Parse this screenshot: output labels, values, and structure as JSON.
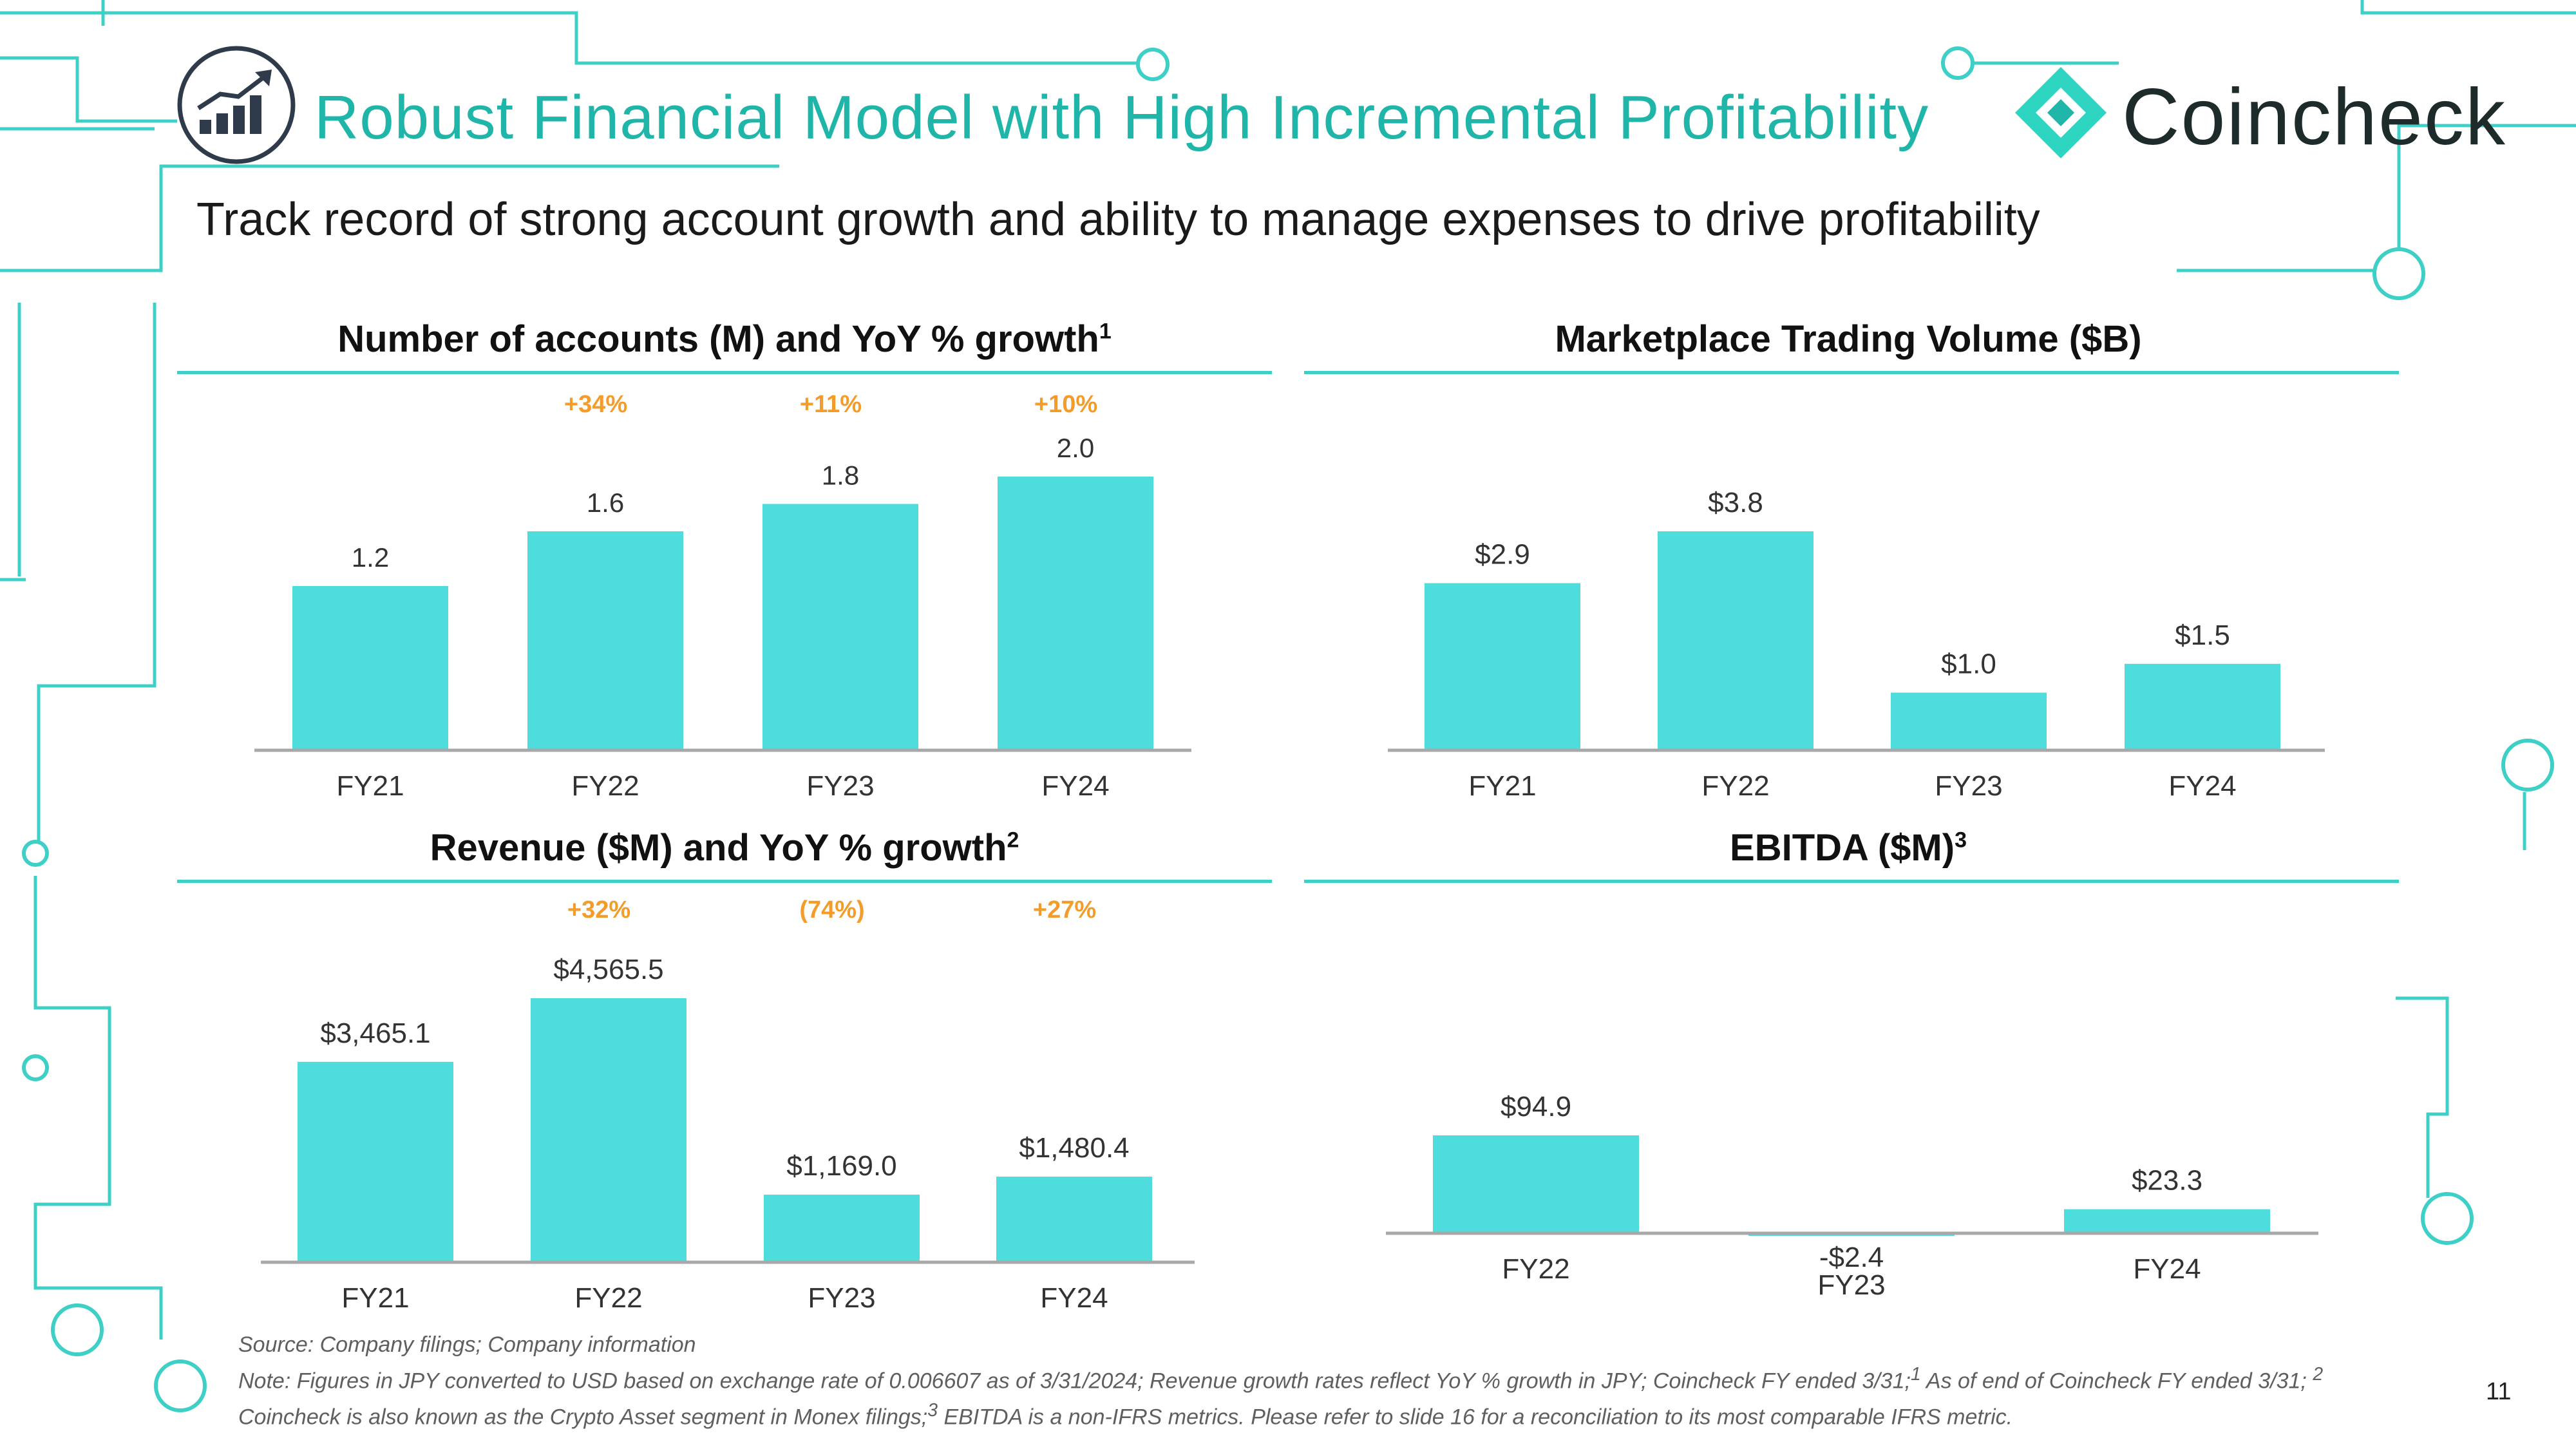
{
  "header": {
    "title": "Robust Financial Model with High Incremental Profitability",
    "subtitle": "Track record of strong account growth and ability to manage expenses to drive profitability",
    "logo_text": "Coincheck"
  },
  "colors": {
    "accent": "#1fb5a8",
    "bar": "#4fdcdc",
    "growth": "#f39c2a",
    "rule": "#3ecfc7"
  },
  "panels": {
    "accounts": {
      "title": "Number of accounts (M) and YoY % growth",
      "sup": "1"
    },
    "volume": {
      "title": "Marketplace Trading Volume ($B)",
      "sup": ""
    },
    "revenue": {
      "title": "Revenue ($M) and YoY % growth",
      "sup": "2"
    },
    "ebitda": {
      "title": "EBITDA ($M)",
      "sup": "3"
    }
  },
  "chart_data": [
    {
      "id": "accounts",
      "type": "bar",
      "title": "Number of accounts (M) and YoY % growth",
      "categories": [
        "FY21",
        "FY22",
        "FY23",
        "FY24"
      ],
      "values": [
        1.2,
        1.6,
        1.8,
        2.0
      ],
      "value_labels": [
        "1.2",
        "1.6",
        "1.8",
        "2.0"
      ],
      "growth_labels": [
        "",
        "+34%",
        "+11%",
        "+10%"
      ],
      "ylim": [
        0,
        2.0
      ]
    },
    {
      "id": "volume",
      "type": "bar",
      "title": "Marketplace Trading Volume ($B)",
      "categories": [
        "FY21",
        "FY22",
        "FY23",
        "FY24"
      ],
      "values": [
        2.9,
        3.8,
        1.0,
        1.5
      ],
      "value_labels": [
        "$2.9",
        "$3.8",
        "$1.0",
        "$1.5"
      ],
      "growth_labels": [],
      "ylim": [
        0,
        3.8
      ]
    },
    {
      "id": "revenue",
      "type": "bar",
      "title": "Revenue ($M) and YoY % growth",
      "categories": [
        "FY21",
        "FY22",
        "FY23",
        "FY24"
      ],
      "values": [
        3465.1,
        4565.5,
        1169.0,
        1480.4
      ],
      "value_labels": [
        "$3,465.1",
        "$4,565.5",
        "$1,169.0",
        "$1,480.4"
      ],
      "growth_labels": [
        "",
        "+32%",
        "(74%)",
        "+27%"
      ],
      "ylim": [
        0,
        4565.5
      ]
    },
    {
      "id": "ebitda",
      "type": "bar",
      "title": "EBITDA ($M)",
      "categories": [
        "FY22",
        "FY23",
        "FY24"
      ],
      "values": [
        94.9,
        -2.4,
        23.3
      ],
      "value_labels": [
        "$94.9",
        "-$2.4",
        "$23.3"
      ],
      "growth_labels": [],
      "ylim": [
        -2.4,
        94.9
      ]
    }
  ],
  "footnotes": {
    "source": "Source: Company filings; Company information",
    "note_prefix": "Note: Figures in JPY converted to USD based on exchange rate of 0.006607 as of 3/31/2024; Revenue growth rates reflect YoY % growth in JPY; Coincheck FY ended 3/31;",
    "sup1": "1",
    "note_part1": " As of end of Coincheck FY ended 3/31; ",
    "sup2": "2",
    "note_part2": " Coincheck is also known as the Crypto Asset segment in Monex filings;",
    "sup3": "3",
    "note_part3": " EBITDA is a non-IFRS metrics. Please refer to slide 16 for a reconciliation to its most comparable IFRS metric."
  },
  "page_number": "11"
}
